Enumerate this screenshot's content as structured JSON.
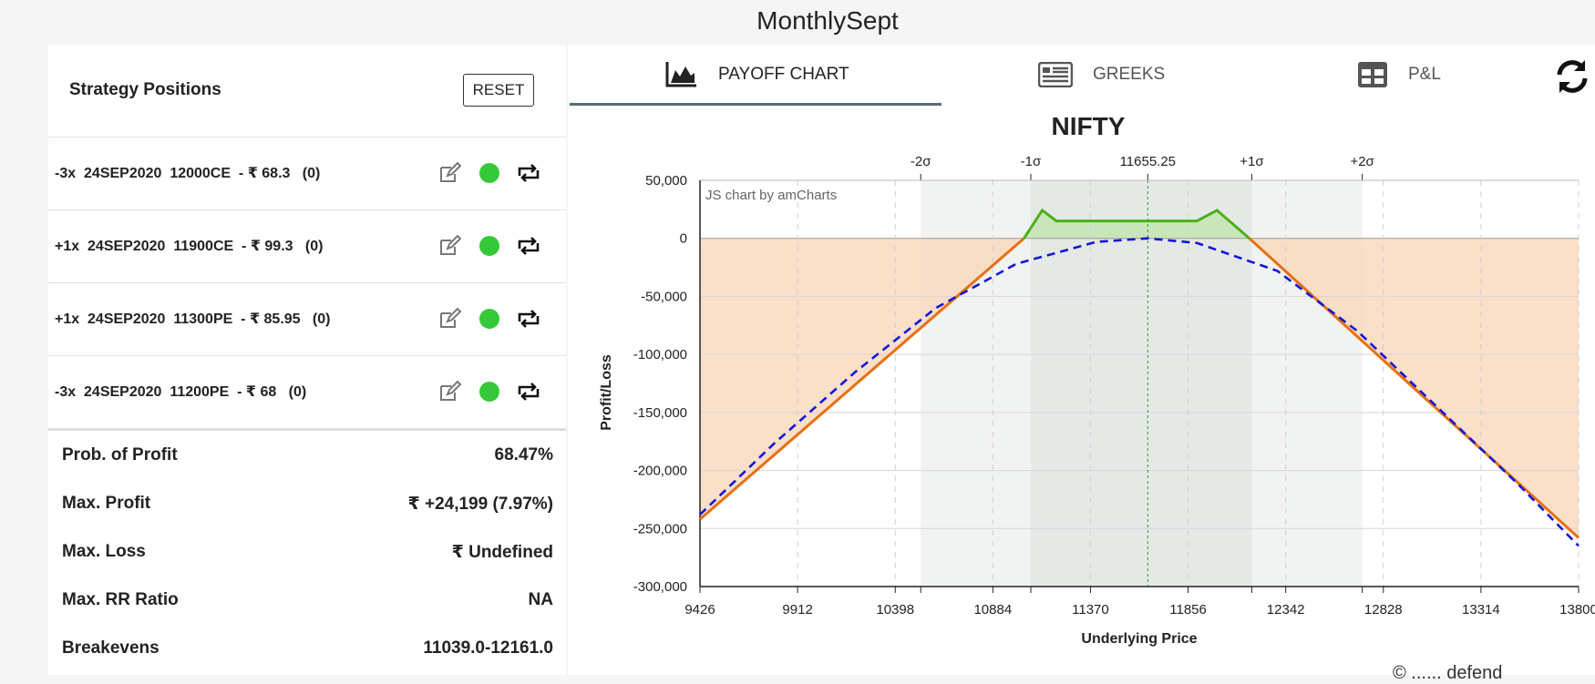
{
  "page": {
    "title": "MonthlySept"
  },
  "left": {
    "title": "Strategy Positions",
    "reset_label": "RESET",
    "positions": [
      {
        "text": "-3x  24SEP2020  12000CE  - ₹ 68.3   (0)",
        "status": "active"
      },
      {
        "text": "+1x  24SEP2020  11900CE  - ₹ 99.3   (0)",
        "status": "active"
      },
      {
        "text": "+1x  24SEP2020  11300PE  - ₹ 85.95   (0)",
        "status": "active"
      },
      {
        "text": "-3x  24SEP2020  11200PE  - ₹ 68   (0)",
        "status": "active"
      }
    ],
    "stats": [
      {
        "label": "Prob. of Profit",
        "value": "68.47%"
      },
      {
        "label": "Max. Profit",
        "value": "₹ +24,199 (7.97%)"
      },
      {
        "label": "Max. Loss",
        "value": "₹ Undefined"
      },
      {
        "label": "Max. RR Ratio",
        "value": "NA"
      },
      {
        "label": "Breakevens",
        "value": "11039.0-12161.0"
      }
    ]
  },
  "tabs": [
    {
      "label": "PAYOFF CHART",
      "icon": "area-chart-icon",
      "active": true
    },
    {
      "label": "GREEKS",
      "icon": "list-icon",
      "active": false
    },
    {
      "label": "P&L",
      "icon": "grid-icon",
      "active": false
    }
  ],
  "footer": {
    "text": "© ...... defend"
  },
  "colors": {
    "profit_line": "#4caf1a",
    "loss_line": "#e8700f",
    "expected_line": "#1515d6",
    "loss_fill": "#f9d9c0",
    "profit_fill": "#c5e6b5",
    "sigma1_band": "#e5e9e6",
    "sigma2_band": "#f1f3f2",
    "accent_dot": "#35c93a"
  },
  "chart_data": {
    "type": "line",
    "title": "NIFTY",
    "watermark": "JS chart by amCharts",
    "xlabel": "Underlying Price",
    "ylabel": "Profit/Loss",
    "xlim": [
      9426,
      13800
    ],
    "ylim": [
      -300000,
      50000
    ],
    "x_ticks": [
      9426,
      9912,
      10398,
      10884,
      11370,
      11856,
      12342,
      12828,
      13314,
      13800
    ],
    "y_ticks": [
      50000,
      0,
      -50000,
      -100000,
      -150000,
      -200000,
      -250000,
      -300000
    ],
    "y_tick_labels": [
      "50,000",
      "0",
      "-50,000",
      "-100,000",
      "-150,000",
      "-200,000",
      "-250,000",
      "-300,000"
    ],
    "spot": {
      "label": "11655.25",
      "x": 11655.25
    },
    "sigma_marks": [
      {
        "label": "-2σ",
        "x": 10525
      },
      {
        "label": "-1σ",
        "x": 11073
      },
      {
        "label": "+1σ",
        "x": 12173
      },
      {
        "label": "+2σ",
        "x": 12723
      }
    ],
    "series": [
      {
        "role": "expiry",
        "x": [
          9426,
          11039,
          11130,
          11200,
          11300,
          11900,
          12000,
          12161,
          13800
        ],
        "values": [
          -242000,
          0,
          24199,
          15000,
          15000,
          15000,
          24199,
          0,
          -258000
        ]
      },
      {
        "role": "target",
        "x": [
          9426,
          9800,
          10200,
          10600,
          11000,
          11400,
          11655,
          11900,
          12300,
          12700,
          13100,
          13500,
          13800
        ],
        "values": [
          -238000,
          -176000,
          -115000,
          -60000,
          -22000,
          -3000,
          0,
          -4000,
          -28000,
          -80000,
          -146000,
          -212000,
          -265000
        ]
      }
    ]
  }
}
